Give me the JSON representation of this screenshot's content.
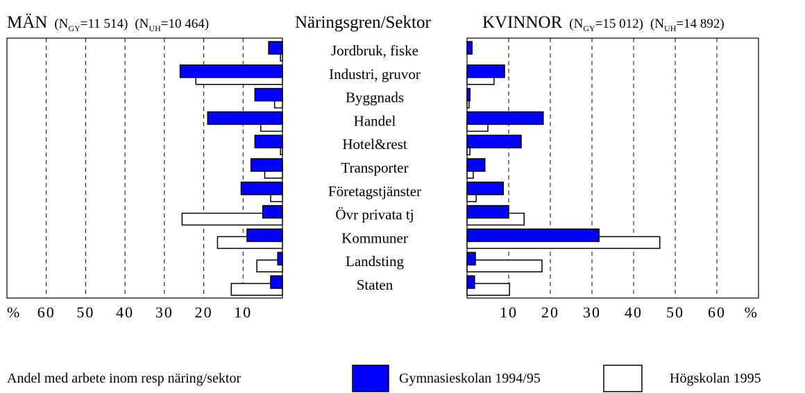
{
  "header": {
    "center": "Näringsgren/Sektor"
  },
  "categories": [
    "Jordbruk, fiske",
    "Industri, gruvor",
    "Byggnads",
    "Handel",
    "Hotel&rest",
    "Transporter",
    "Företagstjänster",
    "Övr privata tj",
    "Kommuner",
    "Landsting",
    "Staten"
  ],
  "chart_data": [
    {
      "type": "bar",
      "title": "MÄN",
      "notes": [
        {
          "symbol": "(N",
          "sub": "GY",
          "value": "=11 514)"
        },
        {
          "symbol": "(N",
          "sub": "UH",
          "value": "=10 464)"
        }
      ],
      "unit": "%",
      "xlim": [
        0,
        70
      ],
      "xticks": [
        60,
        50,
        40,
        30,
        20,
        10
      ],
      "grid": true,
      "reversed": true,
      "series": [
        {
          "name": "Gymnasieskolan 1994/95",
          "color": "#0000ff",
          "values": [
            3.5,
            26,
            7,
            19,
            7,
            8,
            10.5,
            5,
            9,
            1.2,
            3
          ]
        },
        {
          "name": "Högskolan 1995",
          "color": "#ffffff",
          "values": [
            0.5,
            22,
            2,
            5.5,
            0.5,
            4.5,
            3,
            25.5,
            16.5,
            6.5,
            13
          ]
        }
      ]
    },
    {
      "type": "bar",
      "title": "KVINNOR",
      "notes": [
        {
          "symbol": "(N",
          "sub": "GY",
          "value": "=15 012)"
        },
        {
          "symbol": "(N",
          "sub": "UH",
          "value": "=14 892)"
        }
      ],
      "unit": "%",
      "xlim": [
        0,
        70
      ],
      "xticks": [
        10,
        20,
        30,
        40,
        50,
        60
      ],
      "grid": true,
      "reversed": false,
      "series": [
        {
          "color": "#0000ff",
          "values": [
            1.2,
            9,
            0.7,
            18.3,
            13,
            4.3,
            8.7,
            10,
            31.7,
            2,
            1.8
          ]
        },
        {
          "color": "#ffffff",
          "values": [
            0,
            6.5,
            0.5,
            5,
            0.7,
            1.5,
            2.2,
            13.7,
            46.3,
            18,
            10.2
          ]
        }
      ]
    }
  ],
  "legend": {
    "caption": "Andel med arbete inom resp näring/sektor"
  }
}
